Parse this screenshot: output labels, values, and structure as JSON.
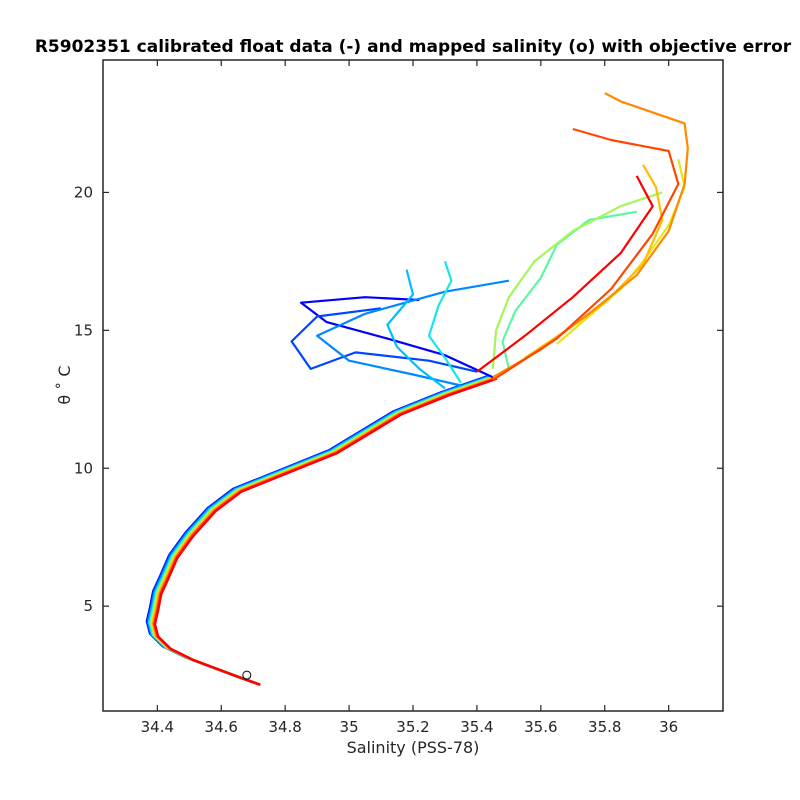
{
  "chart_data": {
    "type": "line",
    "title": "R5902351 calibrated float data (-) and mapped salinity (o) with objective error",
    "xlabel": "Salinity (PSS-78)",
    "ylabel": "θ ˚ C",
    "xlim": [
      34.23,
      36.17
    ],
    "ylim": [
      1.2,
      24.8
    ],
    "x_ticks": [
      "34.4",
      "34.6",
      "34.8",
      "35",
      "35.2",
      "35.4",
      "35.6",
      "35.8",
      "36"
    ],
    "y_ticks": [
      "5",
      "10",
      "15",
      "20"
    ],
    "grid": false,
    "legend": "none",
    "colormap": [
      "#0000ff",
      "#0080ff",
      "#00e0ff",
      "#80ff80",
      "#ffe000",
      "#ff8000",
      "#ff0000"
    ],
    "deep_curve": [
      [
        34.71,
        2.2
      ],
      [
        34.65,
        2.45
      ],
      [
        34.58,
        2.75
      ],
      [
        34.5,
        3.1
      ],
      [
        34.43,
        3.5
      ],
      [
        34.39,
        3.95
      ],
      [
        34.38,
        4.4
      ],
      [
        34.39,
        4.9
      ],
      [
        34.4,
        5.5
      ],
      [
        34.42,
        6.0
      ],
      [
        34.45,
        6.8
      ],
      [
        34.5,
        7.6
      ],
      [
        34.57,
        8.5
      ],
      [
        34.65,
        9.2
      ],
      [
        34.8,
        9.9
      ],
      [
        34.95,
        10.6
      ],
      [
        35.05,
        11.3
      ],
      [
        35.15,
        12.0
      ],
      [
        35.3,
        12.7
      ],
      [
        35.45,
        13.3
      ]
    ],
    "series": [
      {
        "values": [
          [
            35.45,
            13.3
          ],
          [
            35.3,
            14.1
          ],
          [
            35.12,
            14.7
          ],
          [
            34.93,
            15.3
          ],
          [
            34.85,
            16.0
          ],
          [
            35.05,
            16.2
          ],
          [
            35.22,
            16.1
          ]
        ]
      },
      {
        "values": [
          [
            35.4,
            13.5
          ],
          [
            35.25,
            13.9
          ],
          [
            35.02,
            14.2
          ],
          [
            34.88,
            13.6
          ],
          [
            34.82,
            14.6
          ],
          [
            34.9,
            15.5
          ],
          [
            35.1,
            15.8
          ]
        ]
      },
      {
        "values": [
          [
            35.35,
            13.0
          ],
          [
            35.2,
            13.4
          ],
          [
            35.0,
            13.9
          ],
          [
            34.9,
            14.8
          ],
          [
            35.05,
            15.6
          ],
          [
            35.3,
            16.4
          ],
          [
            35.5,
            16.8
          ]
        ]
      },
      {
        "values": [
          [
            35.3,
            12.9
          ],
          [
            35.22,
            13.6
          ],
          [
            35.15,
            14.4
          ],
          [
            35.12,
            15.2
          ],
          [
            35.2,
            16.3
          ],
          [
            35.18,
            17.2
          ]
        ]
      },
      {
        "values": [
          [
            35.35,
            13.1
          ],
          [
            35.3,
            14.0
          ],
          [
            35.25,
            14.8
          ],
          [
            35.28,
            15.9
          ],
          [
            35.32,
            16.8
          ],
          [
            35.3,
            17.5
          ]
        ]
      },
      {
        "values": [
          [
            35.5,
            13.6
          ],
          [
            35.48,
            14.6
          ],
          [
            35.52,
            15.7
          ],
          [
            35.6,
            16.9
          ],
          [
            35.65,
            18.1
          ],
          [
            35.75,
            19.0
          ],
          [
            35.9,
            19.3
          ]
        ]
      },
      {
        "values": [
          [
            35.45,
            13.6
          ],
          [
            35.46,
            15.0
          ],
          [
            35.5,
            16.2
          ],
          [
            35.58,
            17.5
          ],
          [
            35.7,
            18.6
          ],
          [
            35.85,
            19.5
          ],
          [
            35.98,
            20.0
          ]
        ]
      },
      {
        "values": [
          [
            35.65,
            14.5
          ],
          [
            35.75,
            15.5
          ],
          [
            35.85,
            16.5
          ],
          [
            35.92,
            17.5
          ],
          [
            36.0,
            18.8
          ],
          [
            36.05,
            20.2
          ],
          [
            36.03,
            21.2
          ]
        ]
      },
      {
        "values": [
          [
            35.55,
            14.0
          ],
          [
            35.68,
            15.0
          ],
          [
            35.8,
            16.0
          ],
          [
            35.92,
            17.4
          ],
          [
            35.98,
            19.0
          ],
          [
            35.96,
            20.2
          ],
          [
            35.92,
            21.0
          ]
        ]
      },
      {
        "values": [
          [
            35.45,
            13.3
          ],
          [
            35.6,
            14.3
          ],
          [
            35.75,
            15.6
          ],
          [
            35.9,
            17.0
          ],
          [
            36.0,
            18.6
          ],
          [
            36.05,
            20.3
          ],
          [
            36.06,
            21.6
          ],
          [
            36.05,
            22.5
          ],
          [
            35.95,
            22.9
          ],
          [
            35.85,
            23.3
          ],
          [
            35.8,
            23.6
          ]
        ]
      },
      {
        "values": [
          [
            35.45,
            13.2
          ],
          [
            35.65,
            14.7
          ],
          [
            35.82,
            16.5
          ],
          [
            35.95,
            18.5
          ],
          [
            36.03,
            20.3
          ],
          [
            36.0,
            21.5
          ],
          [
            35.82,
            21.9
          ],
          [
            35.7,
            22.3
          ]
        ]
      },
      {
        "values": [
          [
            35.4,
            13.5
          ],
          [
            35.55,
            14.8
          ],
          [
            35.7,
            16.2
          ],
          [
            35.85,
            17.8
          ],
          [
            35.95,
            19.5
          ],
          [
            35.9,
            20.6
          ]
        ]
      }
    ],
    "mapped_point": [
      34.68,
      2.5
    ]
  }
}
